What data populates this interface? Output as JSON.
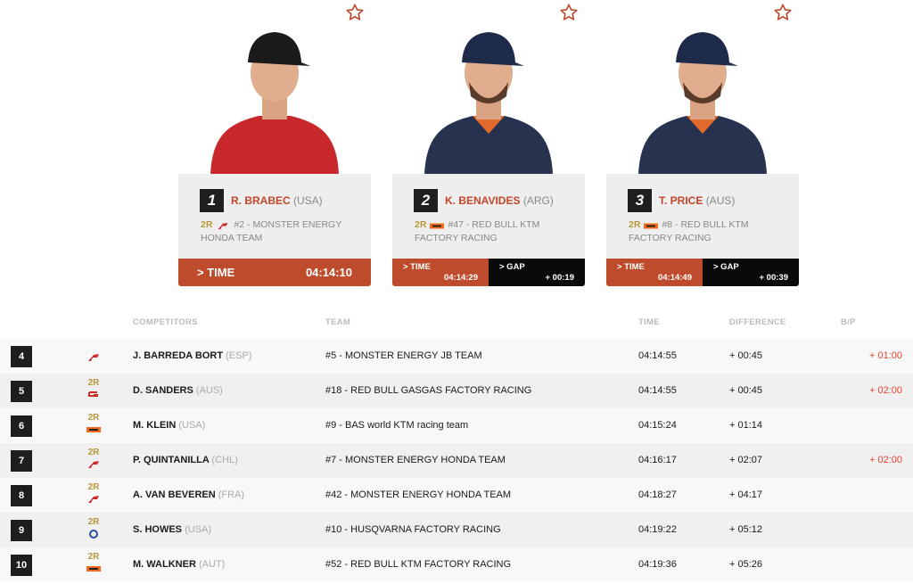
{
  "podium": [
    {
      "rank": "1",
      "name": "R. BRABEC",
      "nat": "(USA)",
      "team": "#2 - MONSTER ENERGY HONDA TEAM",
      "brand": "honda",
      "rally2": "2R",
      "time_label": "> TIME",
      "time": "04:14:10",
      "jersey": "#c8282c"
    },
    {
      "rank": "2",
      "name": "K. BENAVIDES",
      "nat": "(ARG)",
      "team": "#47 - RED BULL KTM FACTORY RACING",
      "brand": "ktm",
      "rally2": "2R",
      "time_label": "> TIME",
      "time": "04:14:29",
      "gap_label": "> GAP",
      "gap": "+ 00:19",
      "jersey": "#27324f"
    },
    {
      "rank": "3",
      "name": "T. PRICE",
      "nat": "(AUS)",
      "team": "#8 - RED BULL KTM FACTORY RACING",
      "brand": "ktm",
      "rally2": "2R",
      "time_label": "> TIME",
      "time": "04:14:49",
      "gap_label": "> GAP",
      "gap": "+ 00:39",
      "jersey": "#27324f"
    }
  ],
  "table": {
    "headers": {
      "competitors": "COMPETITORS",
      "team": "TEAM",
      "time": "TIME",
      "difference": "DIFFERENCE",
      "bp": "B/P"
    },
    "rows": [
      {
        "rank": "4",
        "brand": "honda",
        "rally2": "",
        "name": "J. BARREDA BORT",
        "nat": "(ESP)",
        "team": "#5 - MONSTER ENERGY JB TEAM",
        "time": "04:14:55",
        "diff": "+ 00:45",
        "bp": "+ 01:00"
      },
      {
        "rank": "5",
        "brand": "gasgas",
        "rally2": "2R",
        "name": "D. SANDERS",
        "nat": "(AUS)",
        "team": "#18 - RED BULL GASGAS FACTORY RACING",
        "time": "04:14:55",
        "diff": "+ 00:45",
        "bp": "+ 02:00"
      },
      {
        "rank": "6",
        "brand": "ktm",
        "rally2": "2R",
        "name": "M. KLEIN",
        "nat": "(USA)",
        "team": "#9 - BAS world KTM racing team",
        "time": "04:15:24",
        "diff": "+ 01:14",
        "bp": ""
      },
      {
        "rank": "7",
        "brand": "honda",
        "rally2": "2R",
        "name": "P. QUINTANILLA",
        "nat": "(CHL)",
        "team": "#7 - MONSTER ENERGY HONDA TEAM",
        "time": "04:16:17",
        "diff": "+ 02:07",
        "bp": "+ 02:00"
      },
      {
        "rank": "8",
        "brand": "honda",
        "rally2": "2R",
        "name": "A. VAN BEVEREN",
        "nat": "(FRA)",
        "team": "#42 - MONSTER ENERGY HONDA TEAM",
        "time": "04:18:27",
        "diff": "+ 04:17",
        "bp": ""
      },
      {
        "rank": "9",
        "brand": "husqvarna",
        "rally2": "2R",
        "name": "S. HOWES",
        "nat": "(USA)",
        "team": "#10 - HUSQVARNA FACTORY RACING",
        "time": "04:19:22",
        "diff": "+ 05:12",
        "bp": ""
      },
      {
        "rank": "10",
        "brand": "ktm",
        "rally2": "2R",
        "name": "M. WALKNER",
        "nat": "(AUT)",
        "team": "#52 - RED BULL KTM FACTORY RACING",
        "time": "04:19:36",
        "diff": "+ 05:26",
        "bp": ""
      }
    ]
  },
  "colors": {
    "accent": "#bd4b2c",
    "name_red": "#c1462a",
    "penalty": "#e8412f",
    "rally2_gold": "#b8963a",
    "honda": "#cc2b2b",
    "ktm": "#f26b1d",
    "husqvarna": "#2a4ea0"
  }
}
